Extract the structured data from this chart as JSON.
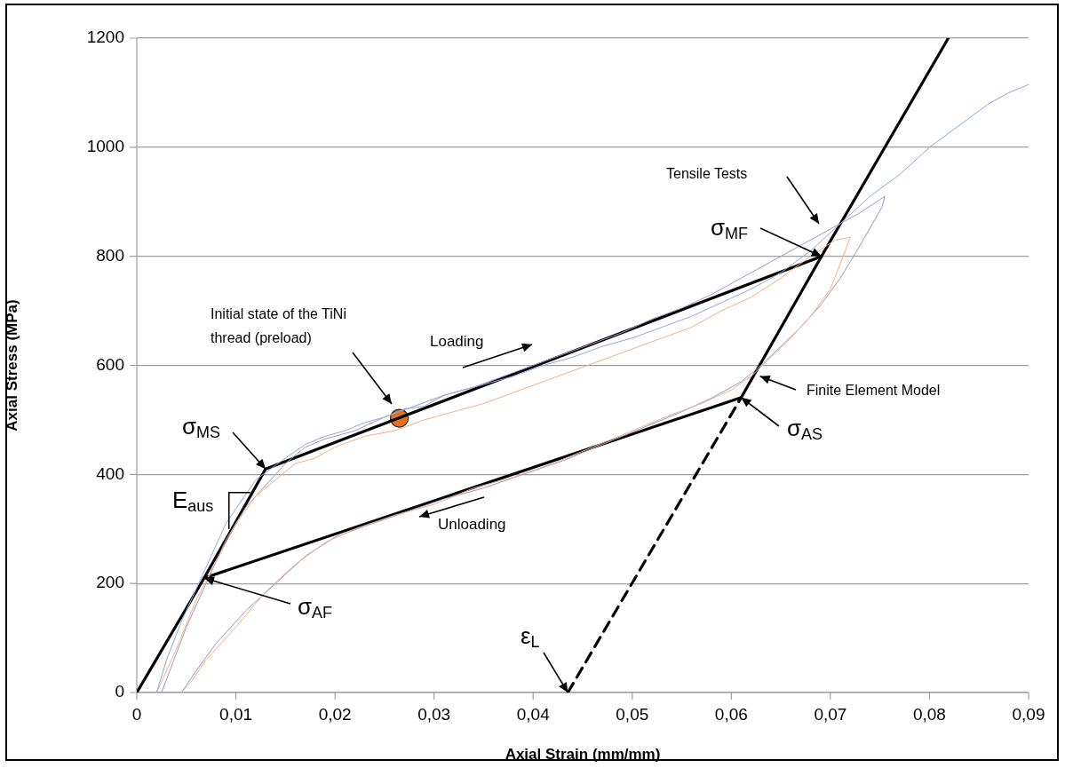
{
  "chart_data": {
    "type": "line",
    "xlabel": "Axial Strain (mm/mm)",
    "ylabel": "Axial Stress (MPa)",
    "xlim": [
      0,
      0.09
    ],
    "ylim": [
      0,
      1200
    ],
    "xticks": [
      0,
      {
        "value": 0.01,
        "label": "0,01"
      },
      {
        "value": 0.02,
        "label": "0,02"
      },
      {
        "value": 0.03,
        "label": "0,03"
      },
      {
        "value": 0.04,
        "label": "0,04"
      },
      {
        "value": 0.05,
        "label": "0,05"
      },
      {
        "value": 0.06,
        "label": "0,06"
      },
      {
        "value": 0.07,
        "label": "0,07"
      },
      {
        "value": 0.08,
        "label": "0,08"
      },
      {
        "value": 0.09,
        "label": "0,09"
      }
    ],
    "yticks": [
      0,
      200,
      400,
      600,
      800,
      1000,
      1200
    ],
    "grid": "y",
    "legend": false,
    "marker": "none",
    "series": [
      {
        "color": "#8eaadb",
        "x": [
          0.002,
          0.003,
          0.0045,
          0.006,
          0.0075,
          0.009,
          0.0105,
          0.012,
          0.0135,
          0.015,
          0.017,
          0.019,
          0.021,
          0.023,
          0.025,
          0.027,
          0.029,
          0.031,
          0.033,
          0.035,
          0.038,
          0.041,
          0.044,
          0.047,
          0.05,
          0.053,
          0.056,
          0.059,
          0.062,
          0.065,
          0.068,
          0.071,
          0.074,
          0.077,
          0.08,
          0.083,
          0.086,
          0.088,
          0.09
        ],
        "values": [
          0,
          60,
          130,
          190,
          250,
          310,
          350,
          390,
          410,
          430,
          455,
          470,
          480,
          495,
          505,
          520,
          525,
          545,
          555,
          565,
          580,
          600,
          615,
          635,
          650,
          670,
          690,
          715,
          740,
          770,
          810,
          860,
          910,
          950,
          1000,
          1040,
          1080,
          1100,
          1115
        ]
      },
      {
        "color": "#f4b183",
        "x": [
          0.002,
          0.004,
          0.006,
          0.008,
          0.01,
          0.012,
          0.014,
          0.016,
          0.018,
          0.02,
          0.023,
          0.026,
          0.029,
          0.032,
          0.035,
          0.038,
          0.041,
          0.044,
          0.047,
          0.05,
          0.053,
          0.056,
          0.059,
          0.062,
          0.065,
          0.068,
          0.0705,
          0.072,
          0.0715,
          0.07,
          0.068,
          0.066,
          0.064,
          0.062,
          0.06,
          0.057,
          0.054,
          0.05,
          0.046,
          0.042,
          0.038,
          0.034,
          0.03,
          0.026,
          0.022,
          0.019,
          0.016,
          0.013,
          0.01,
          0.007,
          0.0055,
          0.0045
        ],
        "values": [
          0,
          80,
          170,
          240,
          310,
          360,
          390,
          420,
          430,
          450,
          470,
          480,
          500,
          515,
          530,
          550,
          570,
          590,
          610,
          630,
          650,
          670,
          700,
          725,
          760,
          800,
          830,
          835,
          810,
          740,
          690,
          650,
          615,
          580,
          555,
          530,
          510,
          480,
          450,
          420,
          395,
          375,
          345,
          325,
          300,
          275,
          235,
          185,
          120,
          60,
          20,
          0
        ]
      },
      {
        "color": "#9999cc",
        "x": [
          0.0025,
          0.005,
          0.007,
          0.009,
          0.011,
          0.013,
          0.015,
          0.017,
          0.019,
          0.022,
          0.025,
          0.028,
          0.031,
          0.034,
          0.037,
          0.04,
          0.043,
          0.046,
          0.049,
          0.052,
          0.055,
          0.058,
          0.061,
          0.064,
          0.067,
          0.07,
          0.073,
          0.0755,
          0.0752,
          0.073,
          0.071,
          0.069,
          0.067,
          0.065,
          0.063,
          0.061,
          0.058,
          0.055,
          0.051,
          0.047,
          0.043,
          0.039,
          0.035,
          0.031,
          0.027,
          0.023,
          0.02,
          0.017,
          0.014,
          0.011,
          0.008,
          0.006,
          0.0045
        ],
        "values": [
          0,
          120,
          200,
          280,
          340,
          380,
          420,
          450,
          465,
          480,
          505,
          525,
          545,
          560,
          580,
          600,
          620,
          640,
          660,
          685,
          705,
          730,
          760,
          790,
          820,
          850,
          880,
          910,
          890,
          820,
          760,
          710,
          670,
          635,
          600,
          570,
          540,
          515,
          485,
          455,
          425,
          400,
          375,
          355,
          330,
          305,
          285,
          250,
          200,
          150,
          90,
          40,
          0
        ]
      },
      {
        "color": "#000000",
        "x": [
          0,
          0.0068,
          0.013,
          0.0691,
          0.0819
        ],
        "values": [
          0,
          210,
          410,
          800,
          1200
        ]
      },
      {
        "color": "#000000",
        "x": [
          0.0691,
          0.061,
          0.0068
        ],
        "values": [
          800,
          541,
          210
        ]
      },
      {
        "color": "#000000",
        "line_style": "dashed",
        "x": [
          0.0435,
          0.061
        ],
        "values": [
          0,
          541
        ]
      },
      {
        "type": "scatter",
        "color": "#e8701a",
        "marker": "circle",
        "x": [
          0.0265
        ],
        "values": [
          503
        ]
      }
    ],
    "annotations": [
      {
        "text": "σ$_{MS}$",
        "x": 0.013,
        "y": 410
      },
      {
        "text": "σ$_{AF}$",
        "x": 0.0068,
        "y": 210
      },
      {
        "text": "E$_{aus}$",
        "x": 0.0093,
        "y": 300
      },
      "Initial state of the TiNi thread (preload)",
      "Loading",
      "Unloading",
      "Tensile Tests",
      {
        "text": "σ$_{MF}$",
        "x": 0.0691,
        "y": 800
      },
      {
        "text": "Finite Element Model",
        "x": 0.0629,
        "y": 580
      },
      {
        "text": "σ$_{AS}$",
        "x": 0.061,
        "y": 541
      },
      {
        "text": "ε$_{L}$",
        "x": 0.0435,
        "y": 0
      }
    ]
  }
}
